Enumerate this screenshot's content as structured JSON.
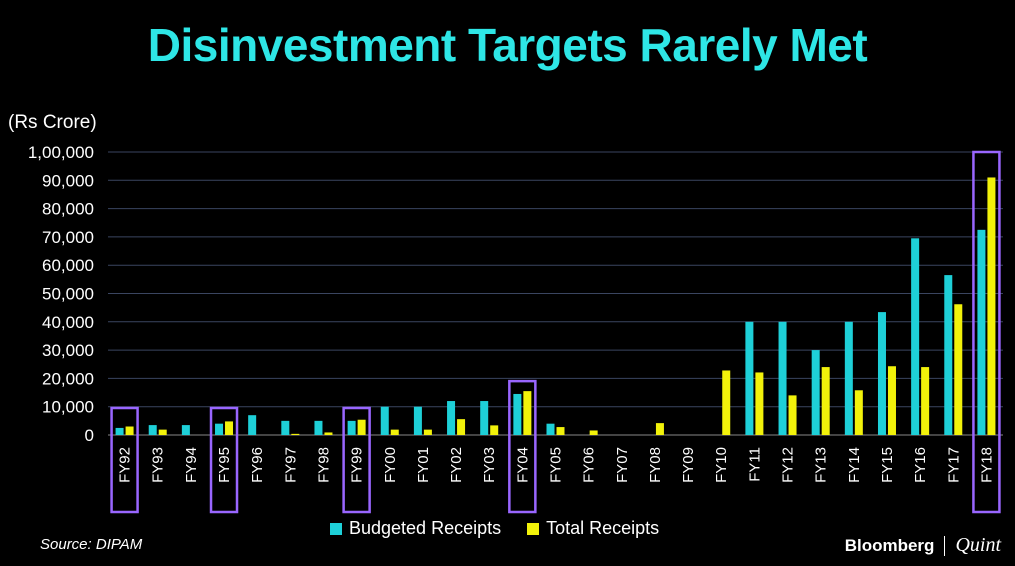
{
  "title": "Disinvestment Targets Rarely Met",
  "unit_label": "(Rs Crore)",
  "source": "Source: DIPAM",
  "brand": {
    "name_a": "Bloomberg",
    "name_b": "Quint"
  },
  "colors": {
    "budgeted": "#1ed0d8",
    "total": "#f2f20a",
    "title": "#2ee6e6",
    "highlight": "#9966ff",
    "grid": "#3a4560"
  },
  "chart_data": {
    "type": "bar",
    "title": "Disinvestment Targets Rarely Met",
    "ylabel": "(Rs Crore)",
    "xlabel": "",
    "ylim": [
      0,
      100000
    ],
    "yticks": [
      0,
      10000,
      20000,
      30000,
      40000,
      50000,
      60000,
      70000,
      80000,
      90000,
      100000
    ],
    "ytick_labels": [
      "0",
      "10,000",
      "20,000",
      "30,000",
      "40,000",
      "50,000",
      "60,000",
      "70,000",
      "80,000",
      "90,000",
      "1,00,000"
    ],
    "grid": true,
    "legend_position": "bottom",
    "categories": [
      "FY92",
      "FY93",
      "FY94",
      "FY95",
      "FY96",
      "FY97",
      "FY98",
      "FY99",
      "FY00",
      "FY01",
      "FY02",
      "FY03",
      "FY04",
      "FY05",
      "FY06",
      "FY07",
      "FY08",
      "FY09",
      "FY10",
      "FY11",
      "FY12",
      "FY13",
      "FY14",
      "FY15",
      "FY16",
      "FY17",
      "FY18"
    ],
    "highlighted": [
      "FY92",
      "FY95",
      "FY99",
      "FY04",
      "FY18"
    ],
    "series": [
      {
        "name": "Budgeted Receipts",
        "values": [
          2500,
          3500,
          3500,
          4000,
          7000,
          5000,
          5000,
          5000,
          10000,
          10000,
          12000,
          12000,
          14500,
          4000,
          0,
          0,
          0,
          0,
          0,
          40000,
          40000,
          30000,
          40000,
          43425,
          69500,
          56500,
          72500
        ]
      },
      {
        "name": "Total Receipts",
        "values": [
          3000,
          1900,
          0,
          4800,
          0,
          400,
          900,
          5400,
          1900,
          1900,
          5600,
          3400,
          15500,
          2800,
          1600,
          0,
          4200,
          0,
          22800,
          22100,
          14000,
          24000,
          15800,
          24300,
          24000,
          46200,
          91000
        ]
      }
    ]
  }
}
